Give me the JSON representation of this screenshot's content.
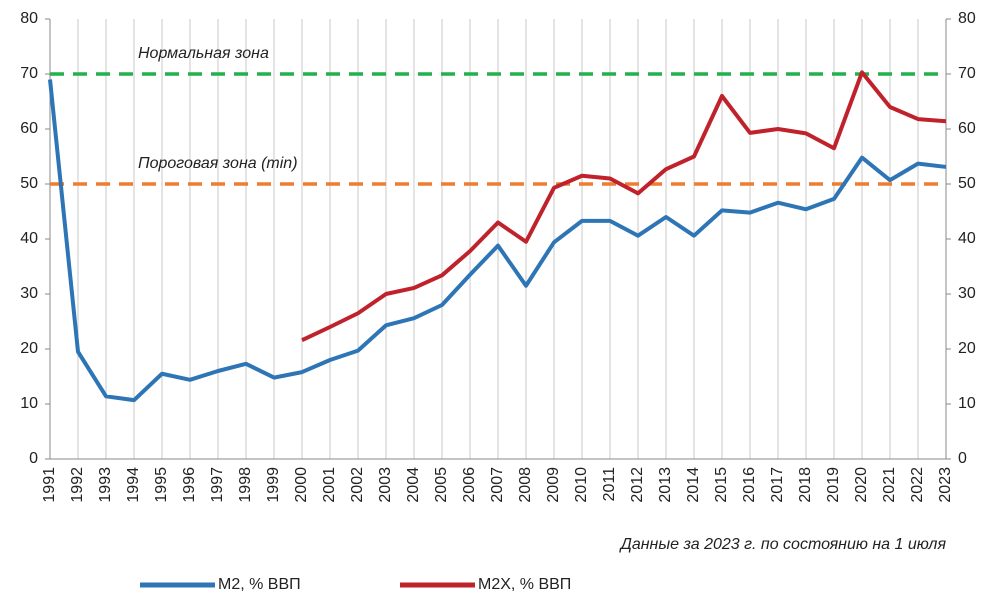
{
  "chart_data": {
    "type": "line",
    "categories": [
      "1991",
      "1992",
      "1993",
      "1994",
      "1995",
      "1996",
      "1997",
      "1998",
      "1999",
      "2000",
      "2001",
      "2002",
      "2003",
      "2004",
      "2005",
      "2006",
      "2007",
      "2008",
      "2009",
      "2010",
      "2011",
      "2012",
      "2013",
      "2014",
      "2015",
      "2016",
      "2017",
      "2018",
      "2019",
      "2020",
      "2021",
      "2022",
      "2023"
    ],
    "series": [
      {
        "name": "M2, % ВВП",
        "color": "#2e75b6",
        "values": [
          69,
          19.5,
          11.4,
          10.7,
          15.5,
          14.4,
          16,
          17.3,
          14.8,
          15.8,
          18,
          19.7,
          24.3,
          25.6,
          28,
          33.5,
          38.8,
          31.5,
          39.4,
          43.3,
          43.3,
          40.6,
          44,
          40.6,
          45.2,
          44.8,
          46.6,
          45.4,
          47.3,
          54.8,
          50.7,
          53.7,
          53.1
        ]
      },
      {
        "name": "M2X, % ВВП",
        "color": "#c0222b",
        "values": [
          null,
          null,
          null,
          null,
          null,
          null,
          null,
          null,
          null,
          21.6,
          24,
          26.5,
          30,
          31.1,
          33.4,
          37.8,
          43,
          39.5,
          49.3,
          51.5,
          51,
          48.3,
          52.7,
          55,
          66,
          59.3,
          60,
          59.2,
          56.5,
          70.3,
          64,
          61.8,
          61.4
        ]
      }
    ],
    "reference_lines": [
      {
        "value": 70,
        "label": "Нормальная зона",
        "color": "#22b14c"
      },
      {
        "value": 50,
        "label": "Пороговая зона (min)",
        "color": "#ed7d31"
      }
    ],
    "ylim": [
      0,
      80
    ],
    "yticks": [
      0,
      10,
      20,
      30,
      40,
      50,
      60,
      70,
      80
    ],
    "y2lim": [
      0,
      80
    ],
    "y2ticks": [
      0,
      10,
      20,
      30,
      40,
      50,
      60,
      70,
      80
    ],
    "grid": "x",
    "legend": "bottom",
    "note": "Данные за 2023 г. по состоянию на 1 июля"
  }
}
